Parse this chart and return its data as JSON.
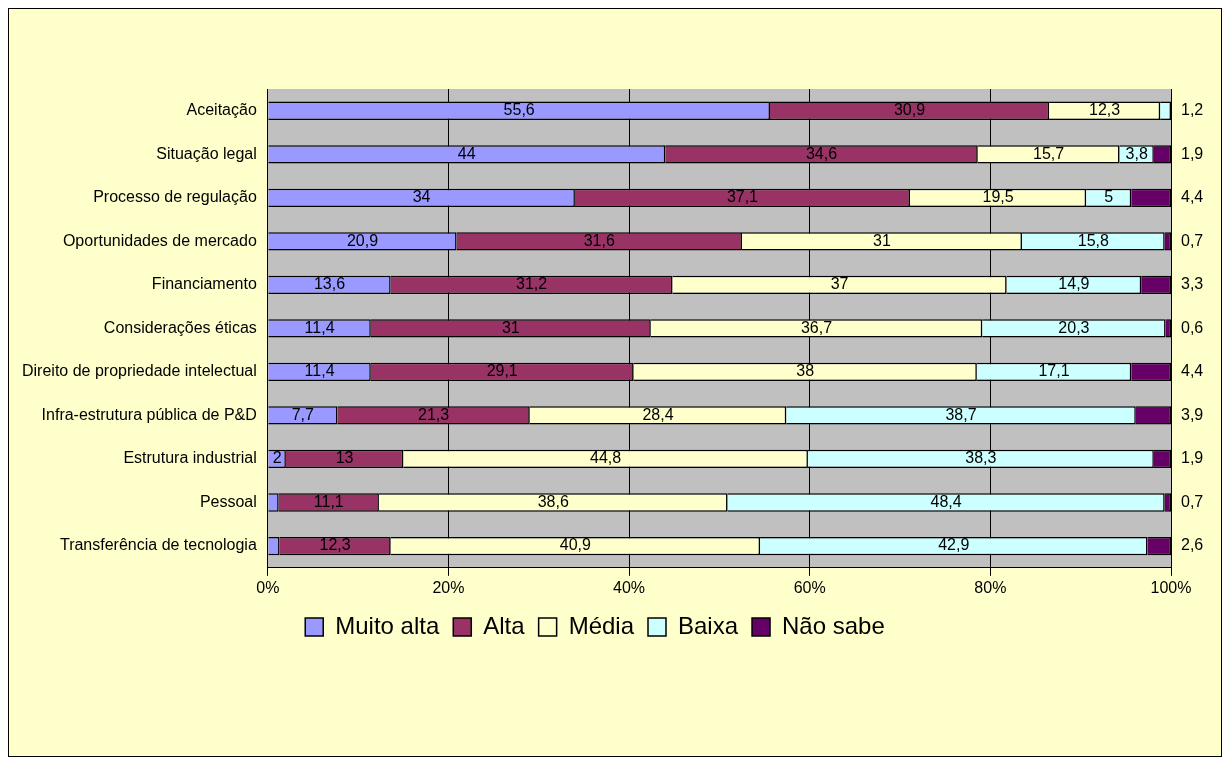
{
  "chart_data": {
    "type": "bar",
    "orientation": "horizontal",
    "stacked": true,
    "categories": [
      "Aceitação",
      "Situação legal",
      "Processo de regulação",
      "Oportunidades de mercado",
      "Financiamento",
      "Considerações éticas",
      "Direito de propriedade intelectual",
      "Infra-estrutura pública de P&D",
      "Estrutura industrial",
      "Pessoal",
      "Transferência de tecnologia"
    ],
    "series": [
      {
        "name": "Muito alta",
        "color": "#9999ff",
        "values": [
          55.6,
          44,
          34,
          20.9,
          13.6,
          11.4,
          11.4,
          7.7,
          2,
          1.2,
          1.3
        ],
        "value_labels": [
          "55,6",
          "44",
          "34",
          "20,9",
          "13,6",
          "11,4",
          "11,4",
          "7,7",
          "2",
          null,
          null
        ]
      },
      {
        "name": "Alta",
        "color": "#993366",
        "values": [
          30.9,
          34.6,
          37.1,
          31.6,
          31.2,
          31,
          29.1,
          21.3,
          13,
          11.1,
          12.3
        ],
        "value_labels": [
          "30,9",
          "34,6",
          "37,1",
          "31,6",
          "31,2",
          "31",
          "29,1",
          "21,3",
          "13",
          "11,1",
          "12,3"
        ]
      },
      {
        "name": "Média",
        "color": "#ffffcc",
        "values": [
          12.3,
          15.7,
          19.5,
          31,
          37,
          36.7,
          38,
          28.4,
          44.8,
          38.6,
          40.9
        ],
        "value_labels": [
          "12,3",
          "15,7",
          "19,5",
          "31",
          "37",
          "36,7",
          "38",
          "28,4",
          "44,8",
          "38,6",
          "40,9"
        ]
      },
      {
        "name": "Baixa",
        "color": "#ccffff",
        "values": [
          1.2,
          3.8,
          5,
          15.8,
          14.9,
          20.3,
          17.1,
          38.7,
          38.3,
          48.4,
          42.9
        ],
        "value_labels": [
          "1,2",
          "3,8",
          "5",
          "15,8",
          "14,9",
          "20,3",
          "17,1",
          "38,7",
          "38,3",
          "48,4",
          "42,9"
        ]
      },
      {
        "name": "Não sabe",
        "color": "#660066",
        "values": [
          0,
          1.9,
          4.4,
          0.7,
          3.3,
          0.6,
          4.4,
          3.9,
          1.9,
          0.7,
          2.6
        ],
        "value_labels": [
          null,
          "1,9",
          "4,4",
          "0,7",
          "3,3",
          "0,6",
          "4,4",
          "3,9",
          "1,9",
          "0,7",
          "2,6"
        ]
      }
    ],
    "xlim": [
      0,
      100
    ],
    "xticks": [
      {
        "value": 0,
        "label": "0%"
      },
      {
        "value": 20,
        "label": "20%"
      },
      {
        "value": 40,
        "label": "40%"
      },
      {
        "value": 60,
        "label": "60%"
      },
      {
        "value": 80,
        "label": "80%"
      },
      {
        "value": 100,
        "label": "100%"
      }
    ],
    "grid": "x",
    "legend": "bottom"
  }
}
